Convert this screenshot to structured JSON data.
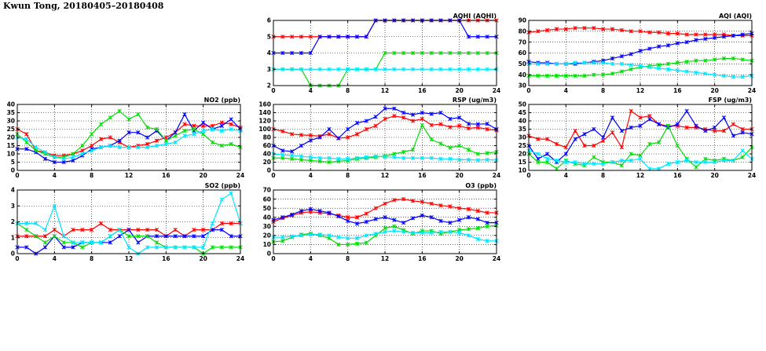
{
  "page_title": "Kwun Tong, 20180405–20180408",
  "colors": {
    "red": "#ff0000",
    "blue": "#0000ff",
    "green": "#00dd00",
    "cyan": "#00e5ff",
    "grid": "#000000"
  },
  "chart_data": [
    {
      "id": "aqhi",
      "type": "line",
      "title": "AQHI (AQHI)",
      "xlim": [
        0,
        24
      ],
      "ylim": [
        2,
        6
      ],
      "xticks": [
        "0",
        "4",
        "8",
        "12",
        "16",
        "20",
        "24"
      ],
      "yticks": [
        "2",
        "3",
        "4",
        "5",
        "6"
      ],
      "grid": true,
      "series": [
        {
          "color": "red",
          "values": [
            5,
            5,
            5,
            5,
            5,
            5,
            5,
            5,
            5,
            5,
            5,
            6,
            6,
            6,
            6,
            6,
            6,
            6,
            6,
            6,
            6,
            6,
            6,
            6,
            6
          ]
        },
        {
          "color": "blue",
          "values": [
            4,
            4,
            4,
            4,
            4,
            5,
            5,
            5,
            5,
            5,
            5,
            6,
            6,
            6,
            6,
            6,
            6,
            6,
            6,
            6,
            6,
            5,
            5,
            5,
            5
          ]
        },
        {
          "color": "green",
          "values": [
            3,
            3,
            3,
            3,
            2,
            2,
            2,
            2,
            3,
            3,
            3,
            3,
            4,
            4,
            4,
            4,
            4,
            4,
            4,
            4,
            4,
            4,
            4,
            4,
            4
          ]
        },
        {
          "color": "cyan",
          "values": [
            3,
            3,
            3,
            3,
            3,
            3,
            3,
            3,
            3,
            3,
            3,
            3,
            3,
            3,
            3,
            3,
            3,
            3,
            3,
            3,
            3,
            3,
            3,
            3,
            3
          ]
        }
      ]
    },
    {
      "id": "aqi",
      "type": "line",
      "title": "AQI (AQI)",
      "xlim": [
        0,
        24
      ],
      "ylim": [
        30,
        90
      ],
      "xticks": [
        "0",
        "4",
        "8",
        "12",
        "16",
        "20",
        "24"
      ],
      "yticks": [
        "30",
        "40",
        "50",
        "60",
        "70",
        "80",
        "90"
      ],
      "grid": true,
      "series": [
        {
          "color": "red",
          "values": [
            79,
            80,
            81,
            82,
            82,
            83,
            83,
            83,
            82,
            82,
            81,
            80,
            80,
            79,
            79,
            78,
            78,
            77,
            77,
            77,
            77,
            77,
            76,
            76,
            76
          ]
        },
        {
          "color": "blue",
          "values": [
            52,
            51,
            51,
            50,
            50,
            50,
            51,
            52,
            53,
            55,
            57,
            59,
            62,
            64,
            66,
            67,
            69,
            70,
            72,
            73,
            74,
            75,
            76,
            77,
            78
          ]
        },
        {
          "color": "green",
          "values": [
            39,
            39,
            39,
            39,
            39,
            39,
            39,
            40,
            40,
            41,
            43,
            45,
            47,
            48,
            49,
            50,
            51,
            52,
            53,
            53,
            54,
            55,
            55,
            54,
            53
          ]
        },
        {
          "color": "cyan",
          "values": [
            50,
            50,
            50,
            50,
            50,
            51,
            51,
            51,
            51,
            50,
            50,
            49,
            48,
            47,
            46,
            45,
            44,
            43,
            42,
            41,
            40,
            39,
            38,
            38,
            39
          ]
        }
      ]
    },
    {
      "id": "no2",
      "type": "line",
      "title": "NO2 (ppb)",
      "xlim": [
        0,
        24
      ],
      "ylim": [
        0,
        40
      ],
      "xticks": [
        "0",
        "4",
        "8",
        "12",
        "16",
        "20",
        "24"
      ],
      "yticks": [
        "0",
        "5",
        "10",
        "15",
        "20",
        "25",
        "30",
        "35",
        "40"
      ],
      "grid": true,
      "series": [
        {
          "color": "red",
          "values": [
            25,
            22,
            12,
            11,
            9,
            9,
            10,
            12,
            15,
            19,
            20,
            17,
            14,
            15,
            16,
            18,
            20,
            23,
            28,
            27,
            27,
            27,
            29,
            28,
            26
          ]
        },
        {
          "color": "blue",
          "values": [
            13,
            13,
            11,
            7,
            5,
            5,
            6,
            9,
            13,
            14,
            15,
            18,
            23,
            23,
            20,
            24,
            18,
            23,
            34,
            24,
            29,
            25,
            27,
            31,
            25
          ]
        },
        {
          "color": "green",
          "values": [
            22,
            17,
            12,
            10,
            8,
            8,
            10,
            15,
            22,
            28,
            32,
            36,
            31,
            34,
            26,
            25,
            18,
            21,
            24,
            25,
            22,
            17,
            15,
            16,
            14
          ]
        },
        {
          "color": "cyan",
          "values": [
            20,
            19,
            14,
            11,
            8,
            7,
            8,
            10,
            12,
            14,
            15,
            14,
            14,
            14,
            14,
            15,
            16,
            17,
            21,
            22,
            24,
            25,
            24,
            25,
            24
          ]
        }
      ]
    },
    {
      "id": "rsp",
      "type": "line",
      "title": "RSP (ug/m3)",
      "xlim": [
        0,
        24
      ],
      "ylim": [
        0,
        160
      ],
      "xticks": [
        "0",
        "4",
        "8",
        "12",
        "16",
        "20",
        "24"
      ],
      "yticks": [
        "0",
        "20",
        "40",
        "60",
        "80",
        "100",
        "120",
        "140",
        "160"
      ],
      "grid": true,
      "series": [
        {
          "color": "red",
          "values": [
            100,
            95,
            88,
            86,
            85,
            83,
            88,
            78,
            80,
            88,
            100,
            108,
            125,
            132,
            128,
            120,
            125,
            110,
            112,
            105,
            108,
            102,
            104,
            100,
            97
          ]
        },
        {
          "color": "blue",
          "values": [
            60,
            48,
            46,
            60,
            73,
            80,
            100,
            78,
            100,
            115,
            120,
            130,
            150,
            150,
            140,
            135,
            140,
            137,
            140,
            125,
            128,
            113,
            112,
            113,
            100
          ]
        },
        {
          "color": "green",
          "values": [
            30,
            30,
            28,
            26,
            24,
            22,
            20,
            22,
            24,
            28,
            30,
            32,
            35,
            40,
            45,
            50,
            110,
            75,
            65,
            55,
            60,
            50,
            40,
            42,
            45
          ]
        },
        {
          "color": "cyan",
          "values": [
            40,
            38,
            36,
            34,
            32,
            30,
            30,
            28,
            28,
            30,
            32,
            34,
            33,
            32,
            30,
            30,
            30,
            30,
            28,
            28,
            26,
            26,
            25,
            26,
            25
          ]
        }
      ]
    },
    {
      "id": "fsp",
      "type": "line",
      "title": "FSP (ug/m3)",
      "xlim": [
        0,
        24
      ],
      "ylim": [
        10,
        50
      ],
      "xticks": [
        "0",
        "4",
        "8",
        "12",
        "16",
        "20",
        "24"
      ],
      "yticks": [
        "10",
        "15",
        "20",
        "25",
        "30",
        "35",
        "40",
        "45",
        "50"
      ],
      "grid": true,
      "series": [
        {
          "color": "red",
          "values": [
            31,
            29,
            29,
            26,
            24,
            34,
            25,
            25,
            28,
            33,
            24,
            46,
            42,
            43,
            38,
            37,
            37,
            36,
            36,
            35,
            34,
            34,
            38,
            35,
            35
          ]
        },
        {
          "color": "blue",
          "values": [
            25,
            17,
            20,
            15,
            20,
            29,
            32,
            35,
            30,
            42,
            34,
            36,
            37,
            41,
            38,
            36,
            38,
            46,
            37,
            34,
            36,
            42,
            31,
            33,
            32
          ]
        },
        {
          "color": "green",
          "values": [
            20,
            15,
            15,
            11,
            16,
            14,
            13,
            18,
            15,
            15,
            13,
            20,
            19,
            26,
            27,
            37,
            25,
            17,
            12,
            17,
            16,
            17,
            16,
            18,
            24
          ]
        },
        {
          "color": "cyan",
          "values": [
            22,
            20,
            17,
            16,
            15,
            15,
            14,
            14,
            14,
            15,
            16,
            16,
            17,
            11,
            11,
            14,
            15,
            16,
            15,
            15,
            15,
            16,
            16,
            22,
            17
          ]
        }
      ]
    },
    {
      "id": "so2",
      "type": "line",
      "title": "SO2 (ppb)",
      "xlim": [
        0,
        24
      ],
      "ylim": [
        0,
        4
      ],
      "xticks": [
        "0",
        "4",
        "8",
        "12",
        "16",
        "20",
        "24"
      ],
      "yticks": [
        "0",
        "1",
        "2",
        "3",
        "4"
      ],
      "grid": true,
      "series": [
        {
          "color": "red",
          "values": [
            1.1,
            1.1,
            1.1,
            1.1,
            1.5,
            1.1,
            1.5,
            1.5,
            1.5,
            1.9,
            1.5,
            1.5,
            1.5,
            1.5,
            1.5,
            1.5,
            1.1,
            1.5,
            1.1,
            1.5,
            1.5,
            1.5,
            1.9,
            1.9,
            1.9
          ]
        },
        {
          "color": "blue",
          "values": [
            0.4,
            0.4,
            0,
            0.4,
            1.1,
            0.4,
            0.4,
            0.7,
            0.7,
            0.7,
            0.7,
            1.1,
            1.5,
            0.7,
            1.1,
            1.1,
            1.1,
            1.1,
            1.1,
            1.1,
            1.1,
            1.5,
            1.5,
            1.1,
            1.1
          ]
        },
        {
          "color": "green",
          "values": [
            1.9,
            1.5,
            1.1,
            0.7,
            1.1,
            0.7,
            0.7,
            0.4,
            0.7,
            0.7,
            1.1,
            1.5,
            1.1,
            1.1,
            1.1,
            0.7,
            0.4,
            0.4,
            0.4,
            0.4,
            0,
            0.4,
            0.4,
            0.4,
            0.4
          ]
        },
        {
          "color": "cyan",
          "values": [
            1.9,
            1.9,
            1.9,
            1.5,
            3.0,
            1.1,
            0.7,
            0.7,
            0.7,
            0.7,
            1.1,
            1.5,
            0.4,
            0,
            0.4,
            0.4,
            0.4,
            0.4,
            0.4,
            0.4,
            0.4,
            1.9,
            3.4,
            3.8,
            1.9
          ]
        }
      ]
    },
    {
      "id": "o3",
      "type": "line",
      "title": "O3 (ppb)",
      "xlim": [
        0,
        24
      ],
      "ylim": [
        0,
        70
      ],
      "xticks": [
        "0",
        "4",
        "8",
        "12",
        "16",
        "20",
        "24"
      ],
      "yticks": [
        "0",
        "10",
        "20",
        "30",
        "40",
        "50",
        "60",
        "70"
      ],
      "grid": true,
      "series": [
        {
          "color": "red",
          "values": [
            35,
            39,
            42,
            45,
            46,
            45,
            44,
            42,
            40,
            40,
            44,
            50,
            55,
            59,
            60,
            58,
            57,
            55,
            53,
            52,
            50,
            49,
            47,
            45,
            45
          ]
        },
        {
          "color": "blue",
          "values": [
            37,
            40,
            43,
            47,
            49,
            47,
            45,
            41,
            36,
            33,
            35,
            38,
            40,
            37,
            34,
            39,
            42,
            40,
            36,
            34,
            37,
            40,
            38,
            34,
            34
          ]
        },
        {
          "color": "green",
          "values": [
            13,
            14,
            18,
            21,
            22,
            20,
            17,
            10,
            10,
            11,
            12,
            20,
            28,
            30,
            26,
            22,
            25,
            25,
            22,
            24,
            26,
            27,
            28,
            30,
            31
          ]
        },
        {
          "color": "cyan",
          "values": [
            18,
            18,
            19,
            20,
            21,
            21,
            20,
            18,
            17,
            17,
            20,
            22,
            24,
            25,
            24,
            23,
            23,
            23,
            24,
            24,
            23,
            20,
            16,
            14,
            14
          ]
        }
      ]
    }
  ]
}
